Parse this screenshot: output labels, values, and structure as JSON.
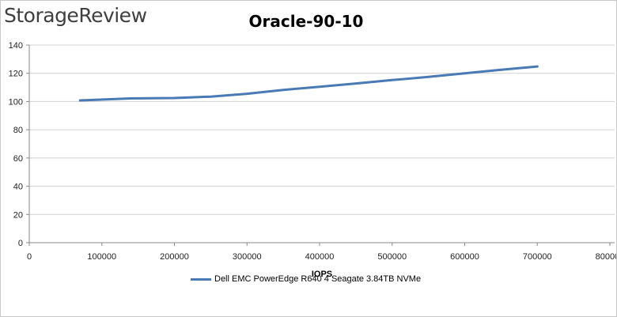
{
  "brand": "StorageReview",
  "chart_data": {
    "type": "line",
    "title": "Oracle-90-10",
    "xlabel": "IOPS",
    "ylabel": "",
    "xlim": [
      0,
      800000
    ],
    "ylim": [
      0,
      140
    ],
    "x_ticks": [
      0,
      100000,
      200000,
      300000,
      400000,
      500000,
      600000,
      700000,
      800000
    ],
    "y_ticks": [
      0,
      20,
      40,
      60,
      80,
      100,
      120,
      140
    ],
    "grid": "horizontal",
    "legend_position": "bottom",
    "series": [
      {
        "name": "Dell EMC PowerEdge R640 4 Seagate 3.84TB NVMe",
        "color": "#4a7ab5",
        "x": [
          70000,
          140000,
          200000,
          250000,
          300000,
          350000,
          400000,
          450000,
          500000,
          550000,
          600000,
          650000,
          700000
        ],
        "y": [
          100.8,
          102.2,
          102.5,
          103.5,
          105.5,
          108.2,
          110.5,
          112.8,
          115.2,
          117.5,
          120.0,
          122.5,
          124.8
        ]
      }
    ]
  }
}
